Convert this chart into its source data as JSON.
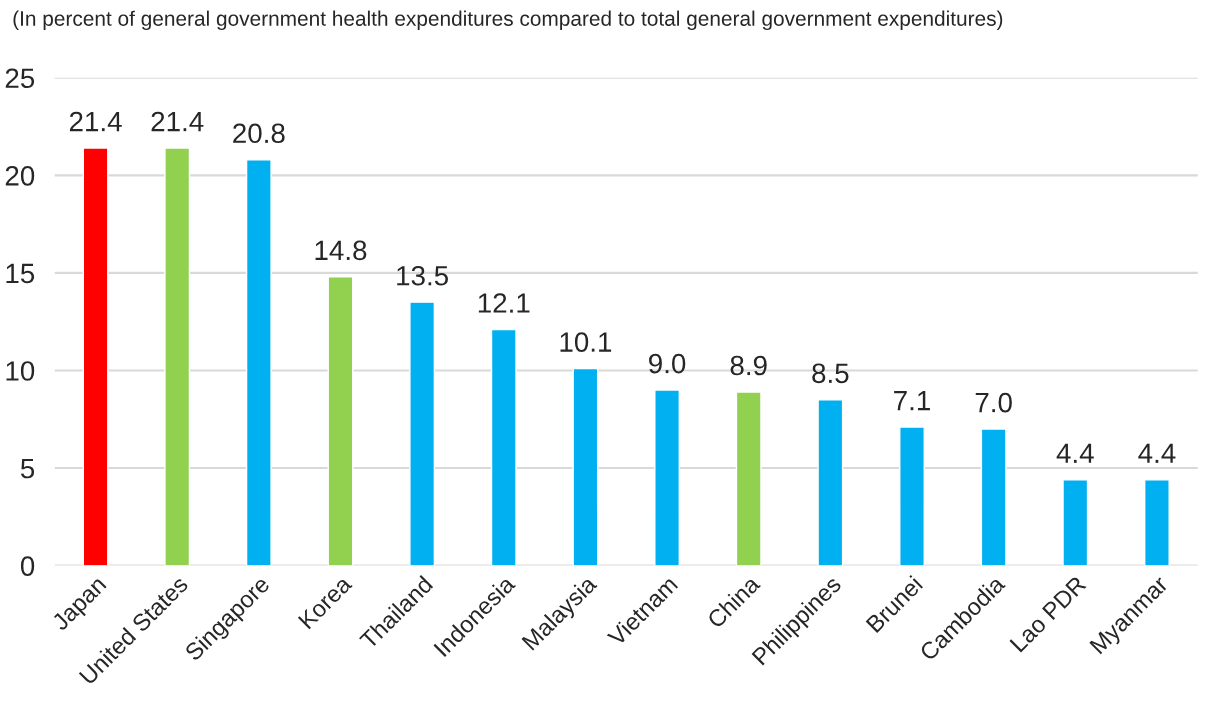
{
  "chart_data": {
    "type": "bar",
    "title": "(In percent of general government health expenditures compared to total general government expenditures)",
    "categories": [
      "Japan",
      "United States",
      "Singapore",
      "Korea",
      "Thailand",
      "Indonesia",
      "Malaysia",
      "Vietnam",
      "China",
      "Philippines",
      "Brunei",
      "Cambodia",
      "Lao PDR",
      "Myanmar"
    ],
    "values": [
      21.4,
      21.4,
      20.8,
      14.8,
      13.5,
      12.1,
      10.1,
      9.0,
      8.9,
      8.5,
      7.1,
      7.0,
      4.4,
      4.4
    ],
    "value_labels": [
      "21.4",
      "21.4",
      "20.8",
      "14.8",
      "13.5",
      "12.1",
      "10.1",
      "9.0",
      "8.9",
      "8.5",
      "7.1",
      "7.0",
      "4.4",
      "4.4"
    ],
    "colors": [
      "#ff0000",
      "#92d050",
      "#00b0f0",
      "#92d050",
      "#00b0f0",
      "#00b0f0",
      "#00b0f0",
      "#00b0f0",
      "#92d050",
      "#00b0f0",
      "#00b0f0",
      "#00b0f0",
      "#00b0f0",
      "#00b0f0"
    ],
    "ylim": [
      0,
      25
    ],
    "yticks": [
      0,
      5,
      10,
      15,
      20,
      25
    ],
    "grid": "y",
    "legend": false
  }
}
